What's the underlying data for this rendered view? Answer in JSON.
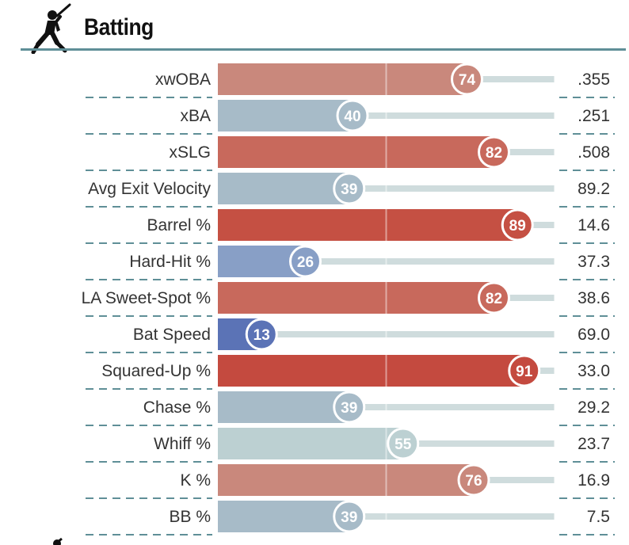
{
  "header": {
    "title": "Batting",
    "icon": "batter-silhouette-icon"
  },
  "footer": {
    "icon": "batter-silhouette-icon"
  },
  "colors": {
    "accent": "#5f8f97",
    "track": "#cfdcdd",
    "text": "#333333"
  },
  "chart_data": {
    "type": "bar",
    "title": "Batting",
    "x_range": [
      0,
      100
    ],
    "categories": [
      "xwOBA",
      "xBA",
      "xSLG",
      "Avg Exit Velocity",
      "Barrel %",
      "Hard-Hit %",
      "LA Sweet-Spot %",
      "Bat Speed",
      "Squared-Up %",
      "Chase %",
      "Whiff %",
      "K %",
      "BB %"
    ],
    "percentiles": [
      74,
      40,
      82,
      39,
      89,
      26,
      82,
      13,
      91,
      39,
      55,
      76,
      39
    ],
    "stat_values": [
      ".355",
      ".251",
      ".508",
      "89.2",
      "14.6",
      "37.3",
      "38.6",
      "69.0",
      "33.0",
      "29.2",
      "23.7",
      "16.9",
      "7.5"
    ],
    "bar_colors": [
      "#c9887c",
      "#a7bbc8",
      "#c8695c",
      "#a7bbc8",
      "#c55043",
      "#889fc6",
      "#c8695c",
      "#5b73b6",
      "#c44a3f",
      "#a7bbc8",
      "#bcd0d2",
      "#c9887c",
      "#a7bbc8"
    ]
  }
}
